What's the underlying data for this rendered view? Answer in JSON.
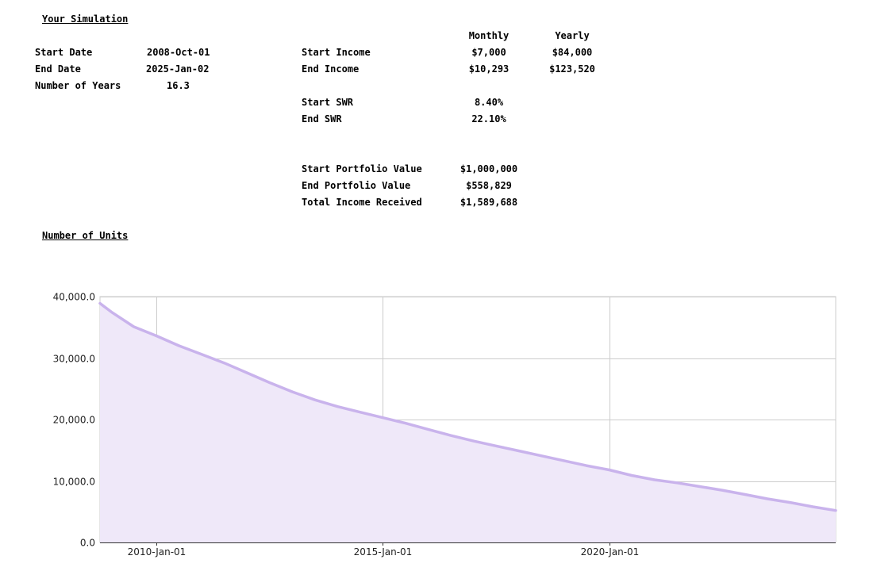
{
  "simulation": {
    "heading": "Your Simulation",
    "start_date_label": "Start Date",
    "start_date_value": "2008-Oct-01",
    "end_date_label": "End Date",
    "end_date_value": "2025-Jan-02",
    "years_label": "Number of Years",
    "years_value": "16.3"
  },
  "income": {
    "monthly_header": "Monthly",
    "yearly_header": "Yearly",
    "start_income_label": "Start Income",
    "start_income_monthly": "$7,000",
    "start_income_yearly": "$84,000",
    "end_income_label": "End Income",
    "end_income_monthly": "$10,293",
    "end_income_yearly": "$123,520",
    "start_swr_label": "Start SWR",
    "start_swr_value": "8.40%",
    "end_swr_label": "End SWR",
    "end_swr_value": "22.10%"
  },
  "portfolio": {
    "start_value_label": "Start Portfolio Value",
    "start_value": "$1,000,000",
    "end_value_label": "End Portfolio Value",
    "end_value": "$558,829",
    "total_income_label": "Total Income Received",
    "total_income": "$1,589,688"
  },
  "units": {
    "heading": "Number of Units"
  },
  "chart_data": {
    "type": "area",
    "title": "",
    "xlabel": "",
    "ylabel": "",
    "x": [
      "2008-10-01",
      "2009-01-01",
      "2009-07-01",
      "2010-01-01",
      "2010-07-01",
      "2011-01-01",
      "2011-07-01",
      "2012-01-01",
      "2012-07-01",
      "2013-01-01",
      "2013-07-01",
      "2014-01-01",
      "2014-07-01",
      "2015-01-01",
      "2015-07-01",
      "2016-01-01",
      "2016-07-01",
      "2017-01-01",
      "2017-07-01",
      "2018-01-01",
      "2018-07-01",
      "2019-01-01",
      "2019-07-01",
      "2020-01-01",
      "2020-07-01",
      "2021-01-01",
      "2021-07-01",
      "2022-01-01",
      "2022-07-01",
      "2023-01-01",
      "2023-07-01",
      "2024-01-01",
      "2024-07-01",
      "2025-01-02"
    ],
    "series": [
      {
        "values": [
          38900,
          37500,
          35100,
          33600,
          32000,
          30600,
          29200,
          27600,
          26000,
          24500,
          23200,
          22100,
          21200,
          20300,
          19400,
          18400,
          17400,
          16500,
          15700,
          14900,
          14100,
          13300,
          12500,
          11800,
          10900,
          10200,
          9700,
          9100,
          8500,
          7800,
          7100,
          6500,
          5800,
          5200
        ]
      }
    ],
    "ylim": [
      0,
      40000
    ],
    "yticks": [
      "0.0",
      "10,000.0",
      "20,000.0",
      "30,000.0",
      "40,000.0"
    ],
    "xticks": [
      "2010-Jan-01",
      "2015-Jan-01",
      "2020-Jan-01"
    ],
    "grid": true,
    "line_color": "#c9b3ec",
    "fill_color": "#efe8f9",
    "grid_color": "#cccccc"
  }
}
